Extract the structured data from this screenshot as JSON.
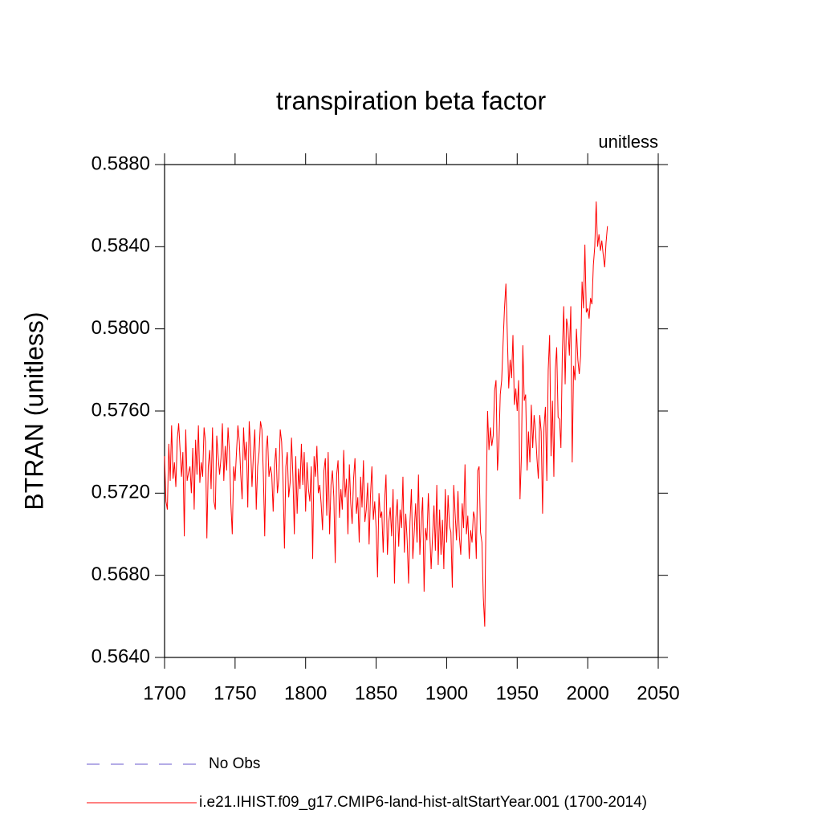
{
  "chart_data": {
    "type": "line",
    "title": "transpiration beta factor",
    "subtitle": "unitless",
    "y_label": "BTRAN  (unitless)",
    "xlim": [
      1700,
      2050
    ],
    "xticks": [
      1700,
      1750,
      1800,
      1850,
      1900,
      1950,
      2000,
      2050
    ],
    "ylim": [
      0.564,
      0.588
    ],
    "yticks": [
      {
        "value": 0.564,
        "label": "0.5640"
      },
      {
        "value": 0.568,
        "label": "0.5680"
      },
      {
        "value": 0.572,
        "label": "0.5720"
      },
      {
        "value": 0.576,
        "label": "0.5760"
      },
      {
        "value": 0.58,
        "label": "0.5800"
      },
      {
        "value": 0.584,
        "label": "0.5840"
      },
      {
        "value": 0.588,
        "label": "0.5880"
      }
    ],
    "series": [
      {
        "name": "No Obs",
        "color": "#6a5acd",
        "dash": true,
        "x": [],
        "values": []
      },
      {
        "name": "i.e21.IHIST.f09_g17.CMIP6-land-hist-altStartYear.001 (1700-2014)",
        "color": "#ff0000",
        "dash": false,
        "x": [
          1700,
          1701,
          1702,
          1703,
          1704,
          1705,
          1706,
          1707,
          1708,
          1709,
          1710,
          1711,
          1712,
          1713,
          1714,
          1715,
          1716,
          1717,
          1718,
          1719,
          1720,
          1721,
          1722,
          1723,
          1724,
          1725,
          1726,
          1727,
          1728,
          1729,
          1730,
          1731,
          1732,
          1733,
          1734,
          1735,
          1736,
          1737,
          1738,
          1739,
          1740,
          1741,
          1742,
          1743,
          1744,
          1745,
          1746,
          1747,
          1748,
          1749,
          1750,
          1751,
          1752,
          1753,
          1754,
          1755,
          1756,
          1757,
          1758,
          1759,
          1760,
          1761,
          1762,
          1763,
          1764,
          1765,
          1766,
          1767,
          1768,
          1769,
          1770,
          1771,
          1772,
          1773,
          1774,
          1775,
          1776,
          1777,
          1778,
          1779,
          1780,
          1781,
          1782,
          1783,
          1784,
          1785,
          1786,
          1787,
          1788,
          1789,
          1790,
          1791,
          1792,
          1793,
          1794,
          1795,
          1796,
          1797,
          1798,
          1799,
          1800,
          1801,
          1802,
          1803,
          1804,
          1805,
          1806,
          1807,
          1808,
          1809,
          1810,
          1811,
          1812,
          1813,
          1814,
          1815,
          1816,
          1817,
          1818,
          1819,
          1820,
          1821,
          1822,
          1823,
          1824,
          1825,
          1826,
          1827,
          1828,
          1829,
          1830,
          1831,
          1832,
          1833,
          1834,
          1835,
          1836,
          1837,
          1838,
          1839,
          1840,
          1841,
          1842,
          1843,
          1844,
          1845,
          1846,
          1847,
          1848,
          1849,
          1850,
          1851,
          1852,
          1853,
          1854,
          1855,
          1856,
          1857,
          1858,
          1859,
          1860,
          1861,
          1862,
          1863,
          1864,
          1865,
          1866,
          1867,
          1868,
          1869,
          1870,
          1871,
          1872,
          1873,
          1874,
          1875,
          1876,
          1877,
          1878,
          1879,
          1880,
          1881,
          1882,
          1883,
          1884,
          1885,
          1886,
          1887,
          1888,
          1889,
          1890,
          1891,
          1892,
          1893,
          1894,
          1895,
          1896,
          1897,
          1898,
          1899,
          1900,
          1901,
          1902,
          1903,
          1904,
          1905,
          1906,
          1907,
          1908,
          1909,
          1910,
          1911,
          1912,
          1913,
          1914,
          1915,
          1916,
          1917,
          1918,
          1919,
          1920,
          1921,
          1922,
          1923,
          1924,
          1925,
          1926,
          1927,
          1928,
          1929,
          1930,
          1931,
          1932,
          1933,
          1934,
          1935,
          1936,
          1937,
          1938,
          1939,
          1940,
          1941,
          1942,
          1943,
          1944,
          1945,
          1946,
          1947,
          1948,
          1949,
          1950,
          1951,
          1952,
          1953,
          1954,
          1955,
          1956,
          1957,
          1958,
          1959,
          1960,
          1961,
          1962,
          1963,
          1964,
          1965,
          1966,
          1967,
          1968,
          1969,
          1970,
          1971,
          1972,
          1973,
          1974,
          1975,
          1976,
          1977,
          1978,
          1979,
          1980,
          1981,
          1982,
          1983,
          1984,
          1985,
          1986,
          1987,
          1988,
          1989,
          1990,
          1991,
          1992,
          1993,
          1994,
          1995,
          1996,
          1997,
          1998,
          1999,
          2000,
          2001,
          2002,
          2003,
          2004,
          2005,
          2006,
          2007,
          2008,
          2009,
          2010,
          2011,
          2012,
          2013,
          2014
        ],
        "values": [
          0.5738,
          0.5716,
          0.5712,
          0.5744,
          0.5726,
          0.5753,
          0.5727,
          0.5735,
          0.5723,
          0.5746,
          0.5754,
          0.5741,
          0.5728,
          0.574,
          0.5699,
          0.5751,
          0.5726,
          0.573,
          0.5733,
          0.572,
          0.5742,
          0.5712,
          0.5746,
          0.5729,
          0.5753,
          0.5725,
          0.5735,
          0.5728,
          0.5752,
          0.5745,
          0.5698,
          0.5733,
          0.5741,
          0.5722,
          0.5752,
          0.5716,
          0.5712,
          0.5748,
          0.5738,
          0.5729,
          0.5737,
          0.5754,
          0.5726,
          0.5743,
          0.5731,
          0.5752,
          0.574,
          0.5715,
          0.57,
          0.5733,
          0.5726,
          0.574,
          0.5753,
          0.5745,
          0.5729,
          0.5717,
          0.5752,
          0.5736,
          0.5745,
          0.5713,
          0.5755,
          0.5742,
          0.5723,
          0.5739,
          0.5751,
          0.5712,
          0.5733,
          0.574,
          0.5755,
          0.5751,
          0.573,
          0.5699,
          0.5741,
          0.5748,
          0.5728,
          0.5733,
          0.5729,
          0.5711,
          0.5734,
          0.5742,
          0.572,
          0.5727,
          0.5751,
          0.5745,
          0.5726,
          0.5693,
          0.5733,
          0.574,
          0.5718,
          0.5725,
          0.5747,
          0.5728,
          0.57,
          0.5738,
          0.571,
          0.5732,
          0.5722,
          0.5744,
          0.5724,
          0.574,
          0.5711,
          0.5735,
          0.5722,
          0.5716,
          0.5733,
          0.5688,
          0.5738,
          0.5728,
          0.5743,
          0.572,
          0.5724,
          0.5715,
          0.5702,
          0.5731,
          0.5737,
          0.5709,
          0.574,
          0.57,
          0.5724,
          0.5731,
          0.5718,
          0.5686,
          0.5729,
          0.5736,
          0.5708,
          0.5722,
          0.5712,
          0.5741,
          0.5718,
          0.5727,
          0.57,
          0.5734,
          0.5715,
          0.5705,
          0.5727,
          0.5737,
          0.571,
          0.5718,
          0.5696,
          0.5728,
          0.5713,
          0.5736,
          0.5706,
          0.5712,
          0.5725,
          0.5695,
          0.5719,
          0.5733,
          0.5707,
          0.5716,
          0.5703,
          0.5679,
          0.572,
          0.5708,
          0.5711,
          0.5691,
          0.5716,
          0.5729,
          0.569,
          0.5706,
          0.5713,
          0.5699,
          0.5722,
          0.5676,
          0.5708,
          0.5717,
          0.5694,
          0.5712,
          0.5703,
          0.5728,
          0.5691,
          0.571,
          0.5697,
          0.5676,
          0.5706,
          0.5722,
          0.5688,
          0.5701,
          0.5715,
          0.5696,
          0.5729,
          0.569,
          0.5706,
          0.5718,
          0.5672,
          0.5703,
          0.5697,
          0.572,
          0.5701,
          0.5683,
          0.5699,
          0.5714,
          0.5692,
          0.5724,
          0.5685,
          0.5712,
          0.569,
          0.5707,
          0.5683,
          0.5722,
          0.5696,
          0.5719,
          0.5704,
          0.5701,
          0.5674,
          0.5724,
          0.571,
          0.5697,
          0.5721,
          0.5699,
          0.569,
          0.5715,
          0.5703,
          0.5734,
          0.57,
          0.5709,
          0.5688,
          0.5702,
          0.5696,
          0.5711,
          0.5708,
          0.5688,
          0.5731,
          0.5733,
          0.5701,
          0.5696,
          0.5669,
          0.5655,
          0.5716,
          0.576,
          0.5741,
          0.5752,
          0.5743,
          0.5748,
          0.577,
          0.5775,
          0.5731,
          0.5743,
          0.5768,
          0.5775,
          0.5793,
          0.581,
          0.5822,
          0.5797,
          0.5771,
          0.5785,
          0.5776,
          0.5797,
          0.5763,
          0.5771,
          0.576,
          0.5775,
          0.5717,
          0.5738,
          0.5792,
          0.5765,
          0.5768,
          0.5731,
          0.575,
          0.5735,
          0.5763,
          0.5742,
          0.5758,
          0.575,
          0.5737,
          0.5727,
          0.5758,
          0.575,
          0.571,
          0.5752,
          0.5762,
          0.5726,
          0.578,
          0.5797,
          0.5738,
          0.5765,
          0.5728,
          0.578,
          0.5791,
          0.5757,
          0.5756,
          0.5742,
          0.5788,
          0.5811,
          0.5773,
          0.5805,
          0.58,
          0.5787,
          0.5811,
          0.5735,
          0.5782,
          0.5775,
          0.58,
          0.5785,
          0.5778,
          0.5787,
          0.5823,
          0.581,
          0.5841,
          0.5808,
          0.581,
          0.5805,
          0.5815,
          0.5812,
          0.5831,
          0.584,
          0.5862,
          0.584,
          0.5846,
          0.5838,
          0.5843,
          0.5836,
          0.583,
          0.5842,
          0.585
        ]
      }
    ]
  }
}
